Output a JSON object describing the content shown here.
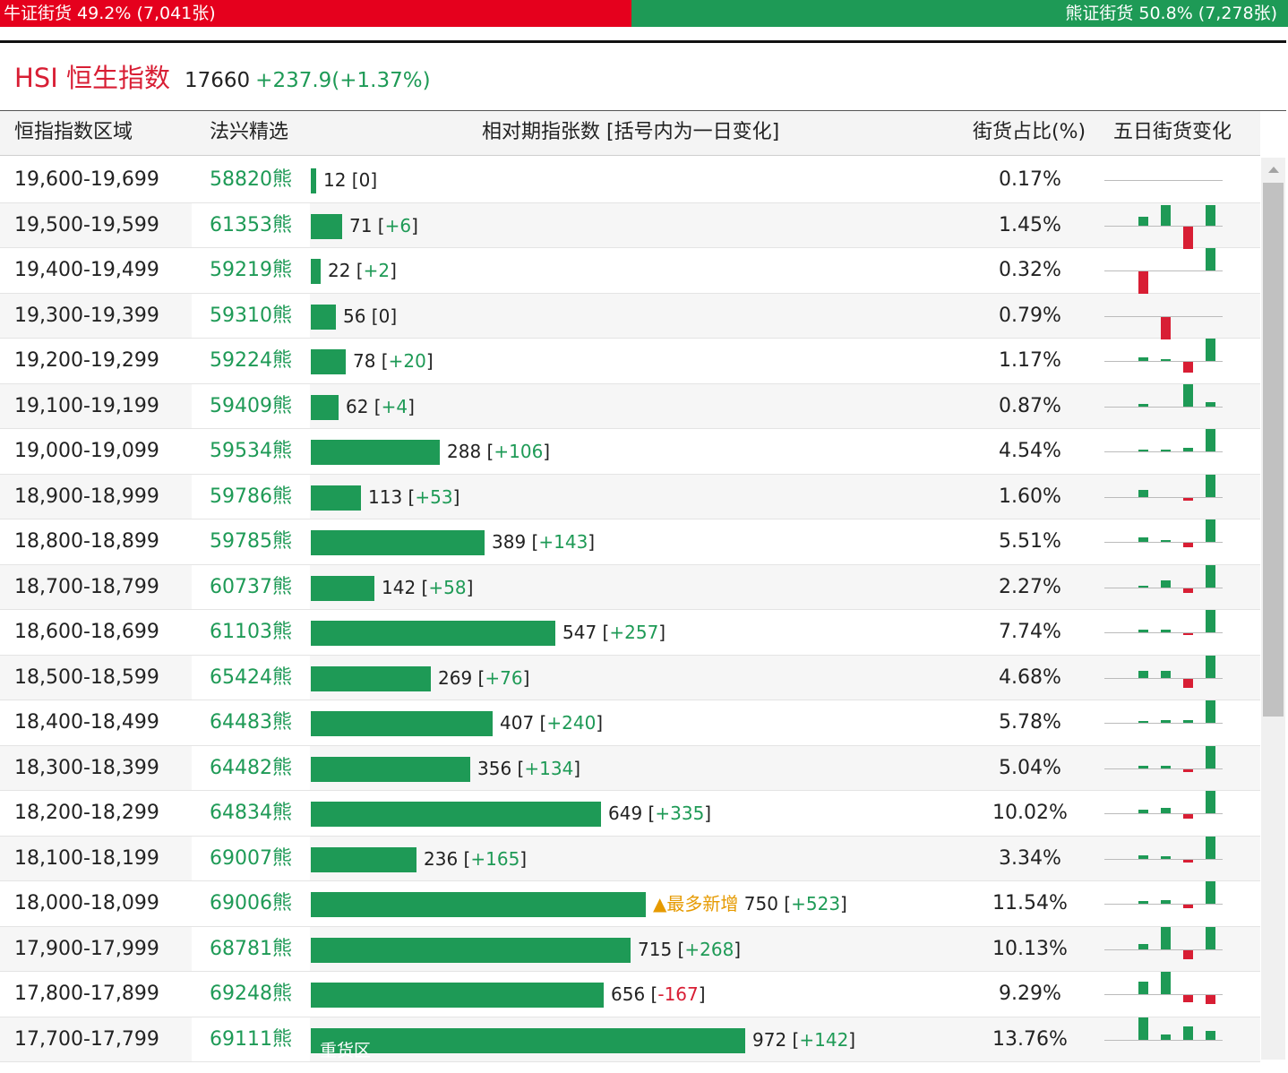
{
  "ratio_bar": {
    "bull_label": "牛证街货 49.2% (7,041张)",
    "bear_label": "熊证街货 50.8% (7,278张)",
    "bull_fraction": 0.49,
    "bull_color": "#e5001d",
    "bear_color": "#1e9a56"
  },
  "index": {
    "name": "HSI 恒生指数",
    "value": "17660",
    "change": "+237.9(+1.37%)"
  },
  "table_header": {
    "range": "恒指指数区域",
    "pick": "法兴精选",
    "count": "相对期指张数 [括号内为一日变化]",
    "share": "街货占比(%)",
    "five_day": "五日街货变化"
  },
  "max_count": 972,
  "rows": [
    {
      "range": "19,600-19,699",
      "code": "58820熊",
      "count": "12",
      "change": "0",
      "share": "0.17%",
      "spark": [
        0,
        0,
        0,
        0,
        0
      ]
    },
    {
      "range": "19,500-19,599",
      "code": "61353熊",
      "count": "71",
      "change": "+6",
      "share": "1.45%",
      "spark": [
        10,
        23,
        0,
        -25,
        23
      ]
    },
    {
      "range": "19,400-19,499",
      "code": "59219熊",
      "count": "22",
      "change": "+2",
      "share": "0.32%",
      "spark": [
        -25,
        0,
        0,
        0,
        25
      ]
    },
    {
      "range": "19,300-19,399",
      "code": "59310熊",
      "count": "56",
      "change": "0",
      "share": "0.79%",
      "spark": [
        0,
        -25,
        0,
        0,
        0
      ]
    },
    {
      "range": "19,200-19,299",
      "code": "59224熊",
      "count": "78",
      "change": "+20",
      "share": "1.17%",
      "spark": [
        4,
        2,
        0,
        -12,
        25
      ]
    },
    {
      "range": "19,100-19,199",
      "code": "59409熊",
      "count": "62",
      "change": "+4",
      "share": "0.87%",
      "spark": [
        3,
        0,
        0,
        25,
        5
      ]
    },
    {
      "range": "19,000-19,099",
      "code": "59534熊",
      "count": "288",
      "change": "+106",
      "share": "4.54%",
      "spark": [
        2,
        2,
        0,
        4,
        25
      ]
    },
    {
      "range": "18,900-18,999",
      "code": "59786熊",
      "count": "113",
      "change": "+53",
      "share": "1.60%",
      "spark": [
        8,
        0,
        0,
        -3,
        25
      ]
    },
    {
      "range": "18,800-18,899",
      "code": "59785熊",
      "count": "389",
      "change": "+143",
      "share": "5.51%",
      "spark": [
        5,
        2,
        0,
        -5,
        25
      ]
    },
    {
      "range": "18,700-18,799",
      "code": "60737熊",
      "count": "142",
      "change": "+58",
      "share": "2.27%",
      "spark": [
        2,
        8,
        0,
        -5,
        25
      ]
    },
    {
      "range": "18,600-18,699",
      "code": "61103熊",
      "count": "547",
      "change": "+257",
      "share": "7.74%",
      "spark": [
        3,
        3,
        0,
        -2,
        25
      ]
    },
    {
      "range": "18,500-18,599",
      "code": "65424熊",
      "count": "269",
      "change": "+76",
      "share": "4.68%",
      "spark": [
        8,
        8,
        0,
        -10,
        25
      ]
    },
    {
      "range": "18,400-18,499",
      "code": "64483熊",
      "count": "407",
      "change": "+240",
      "share": "5.78%",
      "spark": [
        2,
        3,
        0,
        3,
        25
      ]
    },
    {
      "range": "18,300-18,399",
      "code": "64482熊",
      "count": "356",
      "change": "+134",
      "share": "5.04%",
      "spark": [
        3,
        3,
        0,
        -3,
        25
      ]
    },
    {
      "range": "18,200-18,299",
      "code": "64834熊",
      "count": "649",
      "change": "+335",
      "share": "10.02%",
      "spark": [
        4,
        6,
        0,
        -5,
        25
      ]
    },
    {
      "range": "18,100-18,199",
      "code": "69007熊",
      "count": "236",
      "change": "+165",
      "share": "3.34%",
      "spark": [
        4,
        3,
        0,
        -3,
        25
      ]
    },
    {
      "range": "18,000-18,099",
      "code": "69006熊",
      "count": "750",
      "change": "+523",
      "share": "11.54%",
      "spark": [
        3,
        4,
        0,
        -4,
        25
      ],
      "badge": "▲最多新增"
    },
    {
      "range": "17,900-17,999",
      "code": "68781熊",
      "count": "715",
      "change": "+268",
      "share": "10.13%",
      "spark": [
        6,
        25,
        0,
        -10,
        25
      ]
    },
    {
      "range": "17,800-17,899",
      "code": "69248熊",
      "count": "656",
      "change": "-167",
      "share": "9.29%",
      "spark": [
        14,
        25,
        0,
        -8,
        -10
      ]
    },
    {
      "range": "17,700-17,799",
      "code": "69111熊",
      "count": "972",
      "change": "+142",
      "share": "13.76%",
      "spark": [
        25,
        6,
        0,
        15,
        10
      ],
      "label": "重货区"
    }
  ],
  "colors": {
    "green": "#1e9a56",
    "red": "#d81e34",
    "orange": "#e69a00"
  }
}
